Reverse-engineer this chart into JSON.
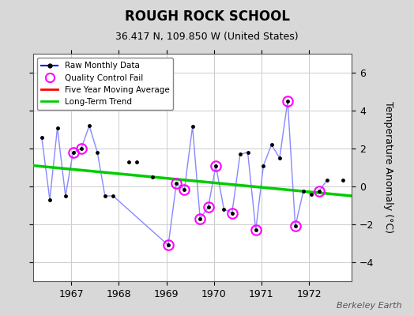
{
  "title": "ROUGH ROCK SCHOOL",
  "subtitle": "36.417 N, 109.850 W (United States)",
  "ylabel": "Temperature Anomaly (°C)",
  "watermark": "Berkeley Earth",
  "background_color": "#d8d8d8",
  "plot_bg_color": "#ffffff",
  "ylim": [
    -5,
    7
  ],
  "yticks": [
    -4,
    -2,
    0,
    2,
    4,
    6
  ],
  "xlim": [
    1966.2,
    1972.9
  ],
  "xticks": [
    1967,
    1968,
    1969,
    1970,
    1971,
    1972
  ],
  "raw_x": [
    1966.38,
    1966.55,
    1966.71,
    1966.88,
    1967.04,
    1967.21,
    1967.38,
    1967.55,
    1967.71,
    1967.88,
    1968.21,
    1968.38,
    1968.71,
    1969.04,
    1969.21,
    1969.38,
    1969.55,
    1969.71,
    1969.88,
    1970.04,
    1970.21,
    1970.38,
    1970.55,
    1970.71,
    1970.88,
    1971.04,
    1971.21,
    1971.38,
    1971.55,
    1971.71,
    1971.88,
    1972.04,
    1972.21,
    1972.38,
    1972.71
  ],
  "raw_y": [
    2.6,
    -0.7,
    3.1,
    -0.5,
    1.8,
    2.0,
    3.2,
    1.8,
    -0.5,
    -0.5,
    1.3,
    1.3,
    0.5,
    -3.1,
    0.15,
    -0.15,
    3.15,
    -1.7,
    -1.1,
    1.1,
    -1.2,
    -1.4,
    1.7,
    1.8,
    -2.3,
    1.1,
    2.2,
    1.5,
    4.5,
    -2.1,
    -0.25,
    -0.4,
    -0.25,
    0.35,
    0.35
  ],
  "connected_x": [
    1966.38,
    1966.55,
    1966.71,
    1966.88,
    1967.04,
    1967.21,
    1967.38,
    1967.55,
    1967.71,
    1967.88,
    1969.04,
    1969.21,
    1969.38,
    1969.55,
    1969.71,
    1969.88,
    1970.04,
    1970.21,
    1970.38,
    1970.55,
    1970.71,
    1970.88,
    1971.04,
    1971.21,
    1971.38,
    1971.55,
    1971.71,
    1971.88,
    1972.04,
    1972.21,
    1972.38
  ],
  "connected_y": [
    2.6,
    -0.7,
    3.1,
    -0.5,
    1.8,
    2.0,
    3.2,
    1.8,
    -0.5,
    -0.5,
    -3.1,
    0.15,
    -0.15,
    3.15,
    -1.7,
    -1.1,
    1.1,
    -1.2,
    -1.4,
    1.7,
    1.8,
    -2.3,
    1.1,
    2.2,
    1.5,
    4.5,
    -2.1,
    -0.25,
    -0.4,
    -0.25,
    0.35
  ],
  "qc_fail_x": [
    1967.04,
    1967.21,
    1969.04,
    1969.21,
    1969.38,
    1969.71,
    1969.88,
    1970.04,
    1970.38,
    1970.88,
    1971.55,
    1971.71,
    1972.21
  ],
  "qc_fail_y": [
    1.8,
    2.0,
    -3.1,
    0.15,
    -0.15,
    -1.7,
    -1.1,
    1.1,
    -1.4,
    -2.3,
    4.5,
    -2.1,
    -0.25
  ],
  "trend_x": [
    1966.2,
    1972.9
  ],
  "trend_y": [
    1.1,
    -0.5
  ],
  "raw_line_color": "#8888ff",
  "raw_line_legend_color": "#0000ff",
  "raw_marker_color": "#000000",
  "qc_color": "#ff00ff",
  "trend_color": "#00cc00",
  "ma_color": "#ff0000"
}
